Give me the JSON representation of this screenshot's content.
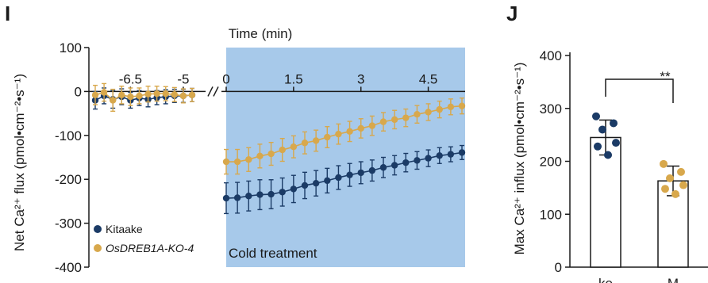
{
  "colors": {
    "kitaake": "#1b3b66",
    "ko": "#d8a84c",
    "cold_region": "#a7c9ea",
    "axis": "#1a1a1a"
  },
  "chart_data": [
    {
      "panel": "I",
      "type": "line",
      "title": "Time (min)",
      "ylabel": "Net Ca²⁺ flux (pmol•cm⁻²•s⁻¹)",
      "ylim": [
        -400,
        100
      ],
      "yticks": [
        "100",
        "0",
        "-100",
        "-200",
        "-300",
        "-400"
      ],
      "xticks": [
        "-6.5",
        "-5",
        "0",
        "1.5",
        "3",
        "4.5"
      ],
      "axis_break": "//",
      "shaded_region_label": "Cold treatment",
      "legend_placement": "bottom-left",
      "pre_x": [
        -7.5,
        -7.25,
        -7.0,
        -6.75,
        -6.5,
        -6.25,
        -6.0,
        -5.75,
        -5.5,
        -5.25,
        -5.0,
        -4.75
      ],
      "x": [
        0,
        0.25,
        0.5,
        0.75,
        1.0,
        1.25,
        1.5,
        1.75,
        2.0,
        2.25,
        2.5,
        2.75,
        3.0,
        3.25,
        3.5,
        3.75,
        4.0,
        4.25,
        4.5,
        4.75,
        5.0,
        5.25
      ],
      "series": [
        {
          "name": "Kitaake",
          "pre_values": [
            -20,
            -10,
            -18,
            -12,
            -20,
            -15,
            -18,
            -14,
            -12,
            -10,
            -10,
            -8
          ],
          "pre_err": [
            20,
            18,
            20,
            18,
            18,
            17,
            17,
            16,
            16,
            15,
            15,
            15
          ],
          "values": [
            -243,
            -242,
            -238,
            -235,
            -234,
            -229,
            -222,
            -214,
            -209,
            -203,
            -196,
            -190,
            -185,
            -180,
            -173,
            -168,
            -162,
            -157,
            -152,
            -146,
            -143,
            -139
          ],
          "err": [
            35,
            35,
            34,
            34,
            33,
            32,
            31,
            30,
            29,
            28,
            27,
            26,
            25,
            24,
            23,
            22,
            21,
            20,
            19,
            18,
            17,
            16
          ]
        },
        {
          "name": "OsDREB1A-KO-4",
          "pre_values": [
            -8,
            -2,
            -20,
            -8,
            -12,
            -10,
            -6,
            -5,
            -5,
            -7,
            -10,
            -8
          ],
          "pre_err": [
            22,
            20,
            25,
            20,
            20,
            18,
            18,
            17,
            16,
            16,
            16,
            15
          ],
          "values": [
            -160,
            -160,
            -155,
            -147,
            -142,
            -133,
            -126,
            -117,
            -112,
            -104,
            -97,
            -91,
            -84,
            -78,
            -69,
            -64,
            -60,
            -52,
            -47,
            -41,
            -35,
            -33
          ],
          "err": [
            28,
            28,
            27,
            27,
            26,
            26,
            25,
            25,
            24,
            24,
            23,
            23,
            22,
            22,
            21,
            21,
            20,
            20,
            19,
            19,
            18,
            18
          ]
        }
      ]
    },
    {
      "panel": "J",
      "type": "bar",
      "ylabel": "Max Ca²⁺ influx (pmol•cm⁻²•s⁻¹)",
      "ylim": [
        0,
        400
      ],
      "yticks": [
        "0",
        "100",
        "200",
        "300",
        "400"
      ],
      "categories": [
        "ke",
        "M"
      ],
      "significance": "**",
      "bars": [
        {
          "value": 245,
          "err": 33,
          "points": [
            285,
            272,
            260,
            235,
            228,
            212
          ],
          "color_key": "kitaake"
        },
        {
          "value": 163,
          "err": 28,
          "points": [
            195,
            180,
            168,
            155,
            148,
            138
          ],
          "color_key": "ko"
        }
      ]
    }
  ]
}
